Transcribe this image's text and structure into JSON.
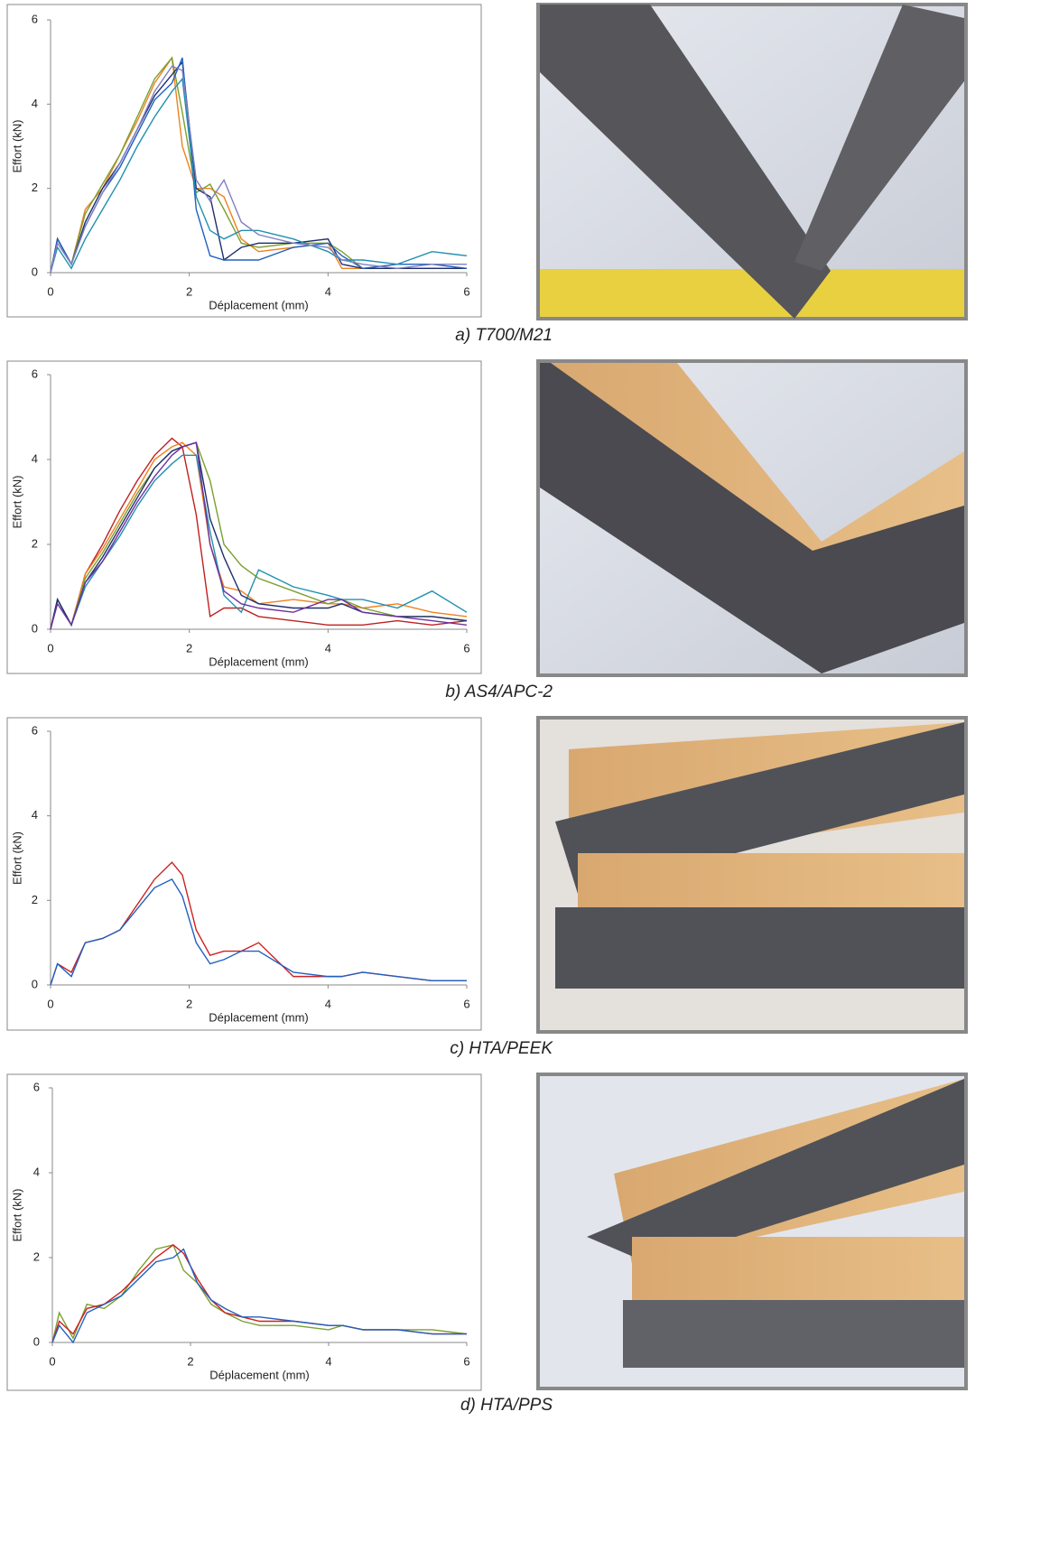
{
  "chart_data": [
    {
      "type": "line",
      "caption": "a) T700/M21",
      "ylabel": "Effort (kN)",
      "xlabel": "Déplacement (mm)",
      "xlim": [
        0,
        6
      ],
      "xticks": [
        0,
        2,
        4,
        6
      ],
      "ylim": [
        0,
        6
      ],
      "yticks": [
        0,
        2,
        4,
        6
      ],
      "x": [
        0,
        0.1,
        0.3,
        0.5,
        0.75,
        1,
        1.25,
        1.5,
        1.75,
        1.9,
        2.1,
        2.3,
        2.5,
        2.75,
        3,
        3.5,
        4,
        4.2,
        4.5,
        5,
        5.5,
        6
      ],
      "series": [
        {
          "color": "#f08020",
          "values": [
            0,
            0.8,
            0.2,
            1.5,
            2,
            2.8,
            3.6,
            4.5,
            5.1,
            3,
            2,
            2,
            1.8,
            0.8,
            0.5,
            0.6,
            0.7,
            0.1,
            0.1,
            0.1,
            0.1,
            0.1
          ]
        },
        {
          "color": "#7aa030",
          "values": [
            0,
            0.8,
            0.2,
            1.4,
            2.1,
            2.8,
            3.7,
            4.6,
            5.1,
            3.8,
            1.9,
            2.1,
            1.5,
            0.7,
            0.6,
            0.7,
            0.7,
            0.5,
            0.1,
            0.1,
            0.1,
            0.1
          ]
        },
        {
          "color": "#1f2f6f",
          "values": [
            0,
            0.8,
            0.2,
            1.2,
            2,
            2.6,
            3.4,
            4.2,
            4.7,
            5,
            2,
            1.8,
            0.3,
            0.6,
            0.7,
            0.7,
            0.8,
            0.2,
            0.1,
            0.1,
            0.1,
            0.1
          ]
        },
        {
          "color": "#2060c0",
          "values": [
            0,
            0.8,
            0.2,
            1.1,
            1.9,
            2.5,
            3.3,
            4.1,
            4.5,
            5.1,
            1.5,
            0.4,
            0.3,
            0.3,
            0.3,
            0.6,
            0.7,
            0.4,
            0.1,
            0.2,
            0.2,
            0.1
          ]
        },
        {
          "color": "#2090b0",
          "values": [
            0,
            0.6,
            0.1,
            0.8,
            1.5,
            2.2,
            3,
            3.7,
            4.3,
            4.6,
            1.8,
            1,
            0.8,
            1,
            1,
            0.8,
            0.5,
            0.3,
            0.3,
            0.2,
            0.5,
            0.4
          ]
        },
        {
          "color": "#8080c0",
          "values": [
            0,
            0.7,
            0.2,
            1.1,
            1.9,
            2.6,
            3.4,
            4.3,
            4.9,
            4.8,
            2.2,
            1.7,
            2.2,
            1.2,
            0.9,
            0.7,
            0.6,
            0.3,
            0.2,
            0.1,
            0.2,
            0.2
          ]
        }
      ]
    },
    {
      "type": "line",
      "caption": "b) AS4/APC-2",
      "ylabel": "Effort (kN)",
      "xlabel": "Déplacement (mm)",
      "xlim": [
        0,
        6
      ],
      "xticks": [
        0,
        2,
        4,
        6
      ],
      "ylim": [
        0,
        6
      ],
      "yticks": [
        0,
        2,
        4,
        6
      ],
      "x": [
        0,
        0.1,
        0.3,
        0.5,
        0.75,
        1,
        1.25,
        1.5,
        1.75,
        1.9,
        2.1,
        2.3,
        2.5,
        2.75,
        3,
        3.5,
        4,
        4.2,
        4.5,
        5,
        5.5,
        6
      ],
      "series": [
        {
          "color": "#c02020",
          "values": [
            0,
            0.7,
            0.1,
            1.3,
            2,
            2.8,
            3.5,
            4.1,
            4.5,
            4.3,
            2.7,
            0.3,
            0.5,
            0.5,
            0.3,
            0.2,
            0.1,
            0.1,
            0.1,
            0.2,
            0.1,
            0.2
          ]
        },
        {
          "color": "#f08020",
          "values": [
            0,
            0.7,
            0.1,
            1.3,
            1.9,
            2.6,
            3.3,
            4,
            4.3,
            4.4,
            4.1,
            2,
            1,
            0.9,
            0.6,
            0.7,
            0.6,
            0.6,
            0.5,
            0.6,
            0.4,
            0.3
          ]
        },
        {
          "color": "#7aa030",
          "values": [
            0,
            0.7,
            0.1,
            1.2,
            1.8,
            2.5,
            3.2,
            3.8,
            4.2,
            4.3,
            4.4,
            3.5,
            2,
            1.5,
            1.2,
            0.9,
            0.6,
            0.7,
            0.5,
            0.3,
            0.3,
            0.2
          ]
        },
        {
          "color": "#2090b0",
          "values": [
            0,
            0.7,
            0.1,
            1,
            1.6,
            2.2,
            2.9,
            3.5,
            3.9,
            4.1,
            4.1,
            2.3,
            0.8,
            0.4,
            1.4,
            1,
            0.8,
            0.7,
            0.7,
            0.5,
            0.9,
            0.4
          ]
        },
        {
          "color": "#1f2f6f",
          "values": [
            0,
            0.7,
            0.1,
            1.1,
            1.7,
            2.4,
            3.1,
            3.8,
            4.2,
            4.3,
            4.4,
            2.6,
            1.7,
            0.8,
            0.6,
            0.5,
            0.5,
            0.6,
            0.4,
            0.3,
            0.3,
            0.2
          ]
        },
        {
          "color": "#7030a0",
          "values": [
            0,
            0.6,
            0.1,
            1.1,
            1.6,
            2.3,
            3,
            3.6,
            4.1,
            4.3,
            4.4,
            2,
            0.9,
            0.6,
            0.5,
            0.4,
            0.7,
            0.7,
            0.4,
            0.3,
            0.2,
            0.1
          ]
        }
      ]
    },
    {
      "type": "line",
      "caption": "c) HTA/PEEK",
      "ylabel": "Effort (kN)",
      "xlabel": "Déplacement (mm)",
      "xlim": [
        0,
        6
      ],
      "xticks": [
        0,
        2,
        4,
        6
      ],
      "ylim": [
        0,
        6
      ],
      "yticks": [
        0,
        2,
        4,
        6
      ],
      "x": [
        0,
        0.1,
        0.3,
        0.5,
        0.75,
        1,
        1.25,
        1.5,
        1.75,
        1.9,
        2.1,
        2.3,
        2.5,
        2.75,
        3,
        3.5,
        4,
        4.2,
        4.5,
        5,
        5.5,
        6
      ],
      "series": [
        {
          "color": "#d02020",
          "values": [
            0,
            0.5,
            0.3,
            1,
            1.1,
            1.3,
            1.9,
            2.5,
            2.9,
            2.6,
            1.3,
            0.7,
            0.8,
            0.8,
            1,
            0.2,
            0.2,
            0.2,
            0.3,
            0.2,
            0.1,
            0.1
          ]
        },
        {
          "color": "#2060c0",
          "values": [
            0,
            0.5,
            0.2,
            1,
            1.1,
            1.3,
            1.8,
            2.3,
            2.5,
            2.1,
            1,
            0.5,
            0.6,
            0.8,
            0.8,
            0.3,
            0.2,
            0.2,
            0.3,
            0.2,
            0.1,
            0.1
          ]
        }
      ]
    },
    {
      "type": "line",
      "caption": "d) HTA/PPS",
      "ylabel": "Effort (kN)",
      "xlabel": "Déplacement (mm)",
      "xlim": [
        0,
        6
      ],
      "xticks": [
        0,
        2,
        4,
        6
      ],
      "ylim": [
        0,
        6
      ],
      "yticks": [
        0,
        2,
        4,
        6
      ],
      "x": [
        0,
        0.1,
        0.3,
        0.5,
        0.75,
        1,
        1.25,
        1.5,
        1.75,
        1.9,
        2.1,
        2.3,
        2.5,
        2.75,
        3,
        3.5,
        4,
        4.2,
        4.5,
        5,
        5.5,
        6
      ],
      "series": [
        {
          "color": "#7aa030",
          "values": [
            0,
            0.7,
            0.1,
            0.9,
            0.8,
            1.1,
            1.7,
            2.2,
            2.3,
            1.7,
            1.4,
            0.9,
            0.7,
            0.5,
            0.4,
            0.4,
            0.3,
            0.4,
            0.3,
            0.3,
            0.3,
            0.2
          ]
        },
        {
          "color": "#d02020",
          "values": [
            0,
            0.5,
            0.2,
            0.8,
            0.9,
            1.2,
            1.6,
            2,
            2.3,
            2.1,
            1.5,
            1,
            0.7,
            0.6,
            0.5,
            0.5,
            0.4,
            0.4,
            0.3,
            0.3,
            0.2,
            0.2
          ]
        },
        {
          "color": "#2060c0",
          "values": [
            0,
            0.4,
            0,
            0.7,
            0.9,
            1.1,
            1.5,
            1.9,
            2,
            2.2,
            1.4,
            1,
            0.8,
            0.6,
            0.6,
            0.5,
            0.4,
            0.4,
            0.3,
            0.3,
            0.2,
            0.2
          ]
        }
      ]
    }
  ]
}
